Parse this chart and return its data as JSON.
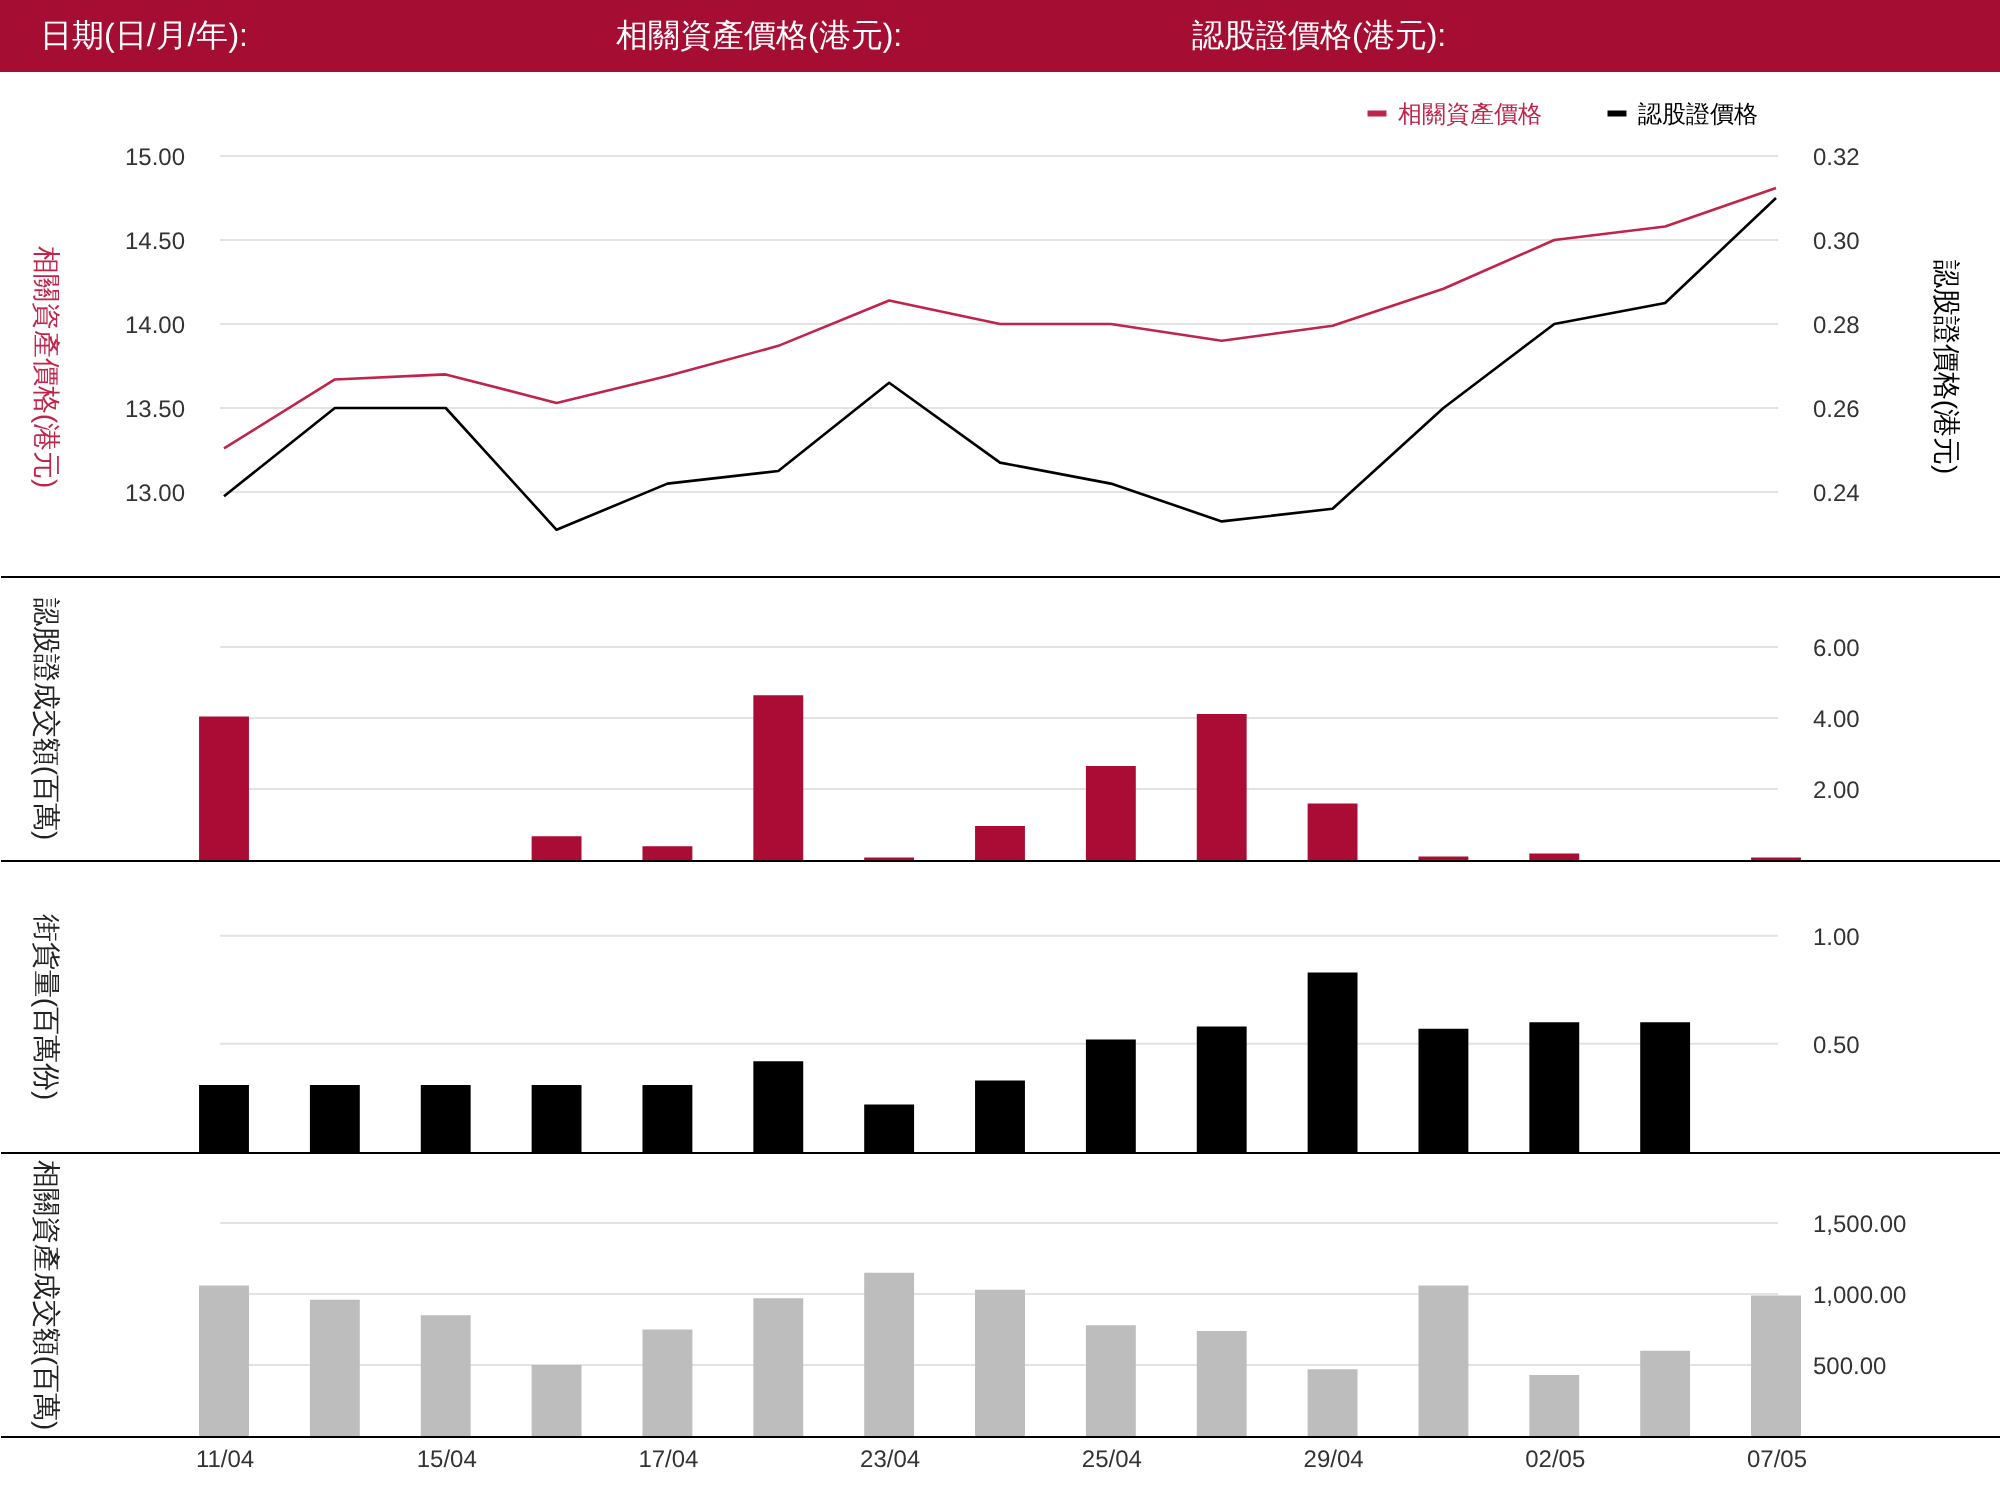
{
  "chart_data": [
    {
      "type": "line",
      "annotations": [
        "日期(日/月/年):",
        "相關資產價格(港元):",
        "認股證價格(港元):"
      ],
      "categories": [
        null,
        null,
        null,
        null,
        null,
        null,
        null,
        null,
        null,
        null,
        null,
        null,
        null,
        null,
        null
      ],
      "series": [
        {
          "name": "相關資產價格",
          "color": "#c0244a",
          "values": [
            13.26,
            13.67,
            13.7,
            13.53,
            13.69,
            13.87,
            14.14,
            14.0,
            14.0,
            13.9,
            13.99,
            14.21,
            14.5,
            14.58,
            14.81
          ]
        },
        {
          "name": "認股證價格",
          "color": "#000000",
          "axis": "y2",
          "values": [
            0.239,
            0.26,
            0.26,
            0.231,
            0.242,
            0.245,
            0.266,
            0.247,
            0.242,
            0.233,
            0.236,
            0.26,
            0.28,
            0.285,
            0.31
          ]
        }
      ],
      "ylim": [
        12.5,
        15
      ],
      "yticks": [
        {
          "value": 13,
          "label": "13.00"
        },
        {
          "value": 13.5,
          "label": "13.50"
        },
        {
          "value": 14,
          "label": "14.00"
        },
        {
          "value": 14.5,
          "label": "14.50"
        },
        {
          "value": 15,
          "label": "15.00"
        }
      ],
      "y2lim": [
        0.22,
        0.32
      ],
      "y2ticks": [
        0.24,
        0.26,
        0.28,
        {
          "value": 0.3,
          "label": "0.30"
        },
        0.32
      ],
      "ylabel": "相關資產價格(港元)",
      "y2label": "認股證價格(港元)",
      "legend": "top right",
      "grid": "y",
      "tick_labels": "y"
    },
    {
      "type": "bar",
      "categories": [
        null,
        null,
        null,
        null,
        null,
        null,
        null,
        null,
        null,
        null,
        null,
        null,
        null,
        null,
        null
      ],
      "values": [
        4.04,
        null,
        null,
        0.67,
        0.39,
        4.64,
        0.07,
        0.96,
        2.65,
        4.11,
        1.59,
        0.1,
        0.18,
        null,
        0.07
      ],
      "color": "#ab0c36",
      "ylim": [
        0,
        8
      ],
      "yticks": [
        {
          "value": 2,
          "label": "2.00"
        },
        {
          "value": 4,
          "label": "4.00"
        },
        {
          "value": 6,
          "label": "6.00"
        }
      ],
      "ylabel": "認股證成交額(百萬)",
      "grid": "y",
      "tick_labels": "y"
    },
    {
      "type": "bar",
      "categories": [
        null,
        null,
        null,
        null,
        null,
        null,
        null,
        null,
        null,
        null,
        null,
        null,
        null,
        null,
        null
      ],
      "values": [
        0.31,
        0.31,
        0.31,
        0.31,
        0.31,
        0.42,
        0.22,
        0.33,
        0.52,
        0.58,
        0.83,
        0.57,
        0.6,
        0.6,
        null
      ],
      "color": "#000000",
      "ylim": [
        0,
        1.35
      ],
      "yticks": [
        {
          "value": 0.5,
          "label": "0.50"
        },
        {
          "value": 1,
          "label": "1.00"
        }
      ],
      "ylabel": "街貨量(百萬份)",
      "grid": "y",
      "tick_labels": "y"
    },
    {
      "type": "bar",
      "categories": [
        "11/04",
        null,
        "15/04",
        null,
        "17/04",
        null,
        "23/04",
        null,
        "25/04",
        null,
        "29/04",
        null,
        "02/05",
        null,
        "07/05"
      ],
      "values": [
        1060,
        960,
        850,
        500,
        750,
        970,
        1150,
        1030,
        780,
        740,
        470,
        1060,
        430,
        600,
        990
      ],
      "color": "#bdbdbd",
      "ylim": [
        0,
        2000
      ],
      "yticks": [
        {
          "value": 500,
          "label": "500.00"
        },
        {
          "value": 1000,
          "label": "1,000.00"
        },
        {
          "value": 1500,
          "label": "1,500.00"
        }
      ],
      "ylabel": "相關資產成交額(百萬)",
      "grid": "y"
    }
  ]
}
